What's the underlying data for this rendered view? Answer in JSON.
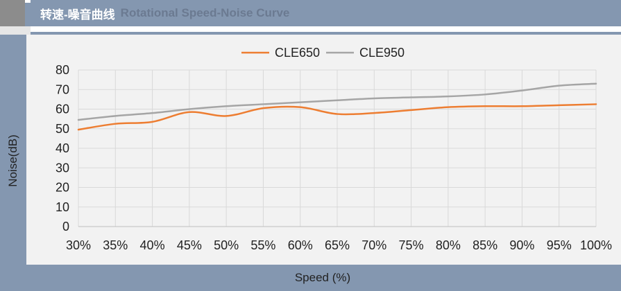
{
  "header": {
    "title_cn": "转速-噪音曲线",
    "title_en": "Rotational Speed-Noise Curve"
  },
  "colors": {
    "band": "#8497b0",
    "plot_bg": "#f2f2f2",
    "grid": "#d9d9d9"
  },
  "chart_data": {
    "type": "line",
    "title": "",
    "xlabel": "Speed (%)",
    "ylabel": "Noise(dB)",
    "categories": [
      "30%",
      "35%",
      "40%",
      "45%",
      "50%",
      "55%",
      "60%",
      "65%",
      "70%",
      "75%",
      "80%",
      "85%",
      "90%",
      "95%",
      "100%"
    ],
    "ylim": [
      0,
      80
    ],
    "yticks": [
      0,
      10,
      20,
      30,
      40,
      50,
      60,
      70,
      80
    ],
    "grid": true,
    "legend": "top-center",
    "smooth": true,
    "series": [
      {
        "name": "CLE650",
        "color": "#ed7d31",
        "values": [
          49.5,
          52.5,
          53.5,
          58.5,
          56.5,
          60.5,
          61,
          57.5,
          58,
          59.5,
          61,
          61.5,
          61.5,
          62,
          62.5
        ]
      },
      {
        "name": "CLE950",
        "color": "#a5a5a5",
        "values": [
          54.5,
          56.5,
          58,
          60,
          61.5,
          62.5,
          63.5,
          64.5,
          65.5,
          66,
          66.5,
          67.5,
          69.5,
          72,
          73
        ]
      }
    ]
  }
}
